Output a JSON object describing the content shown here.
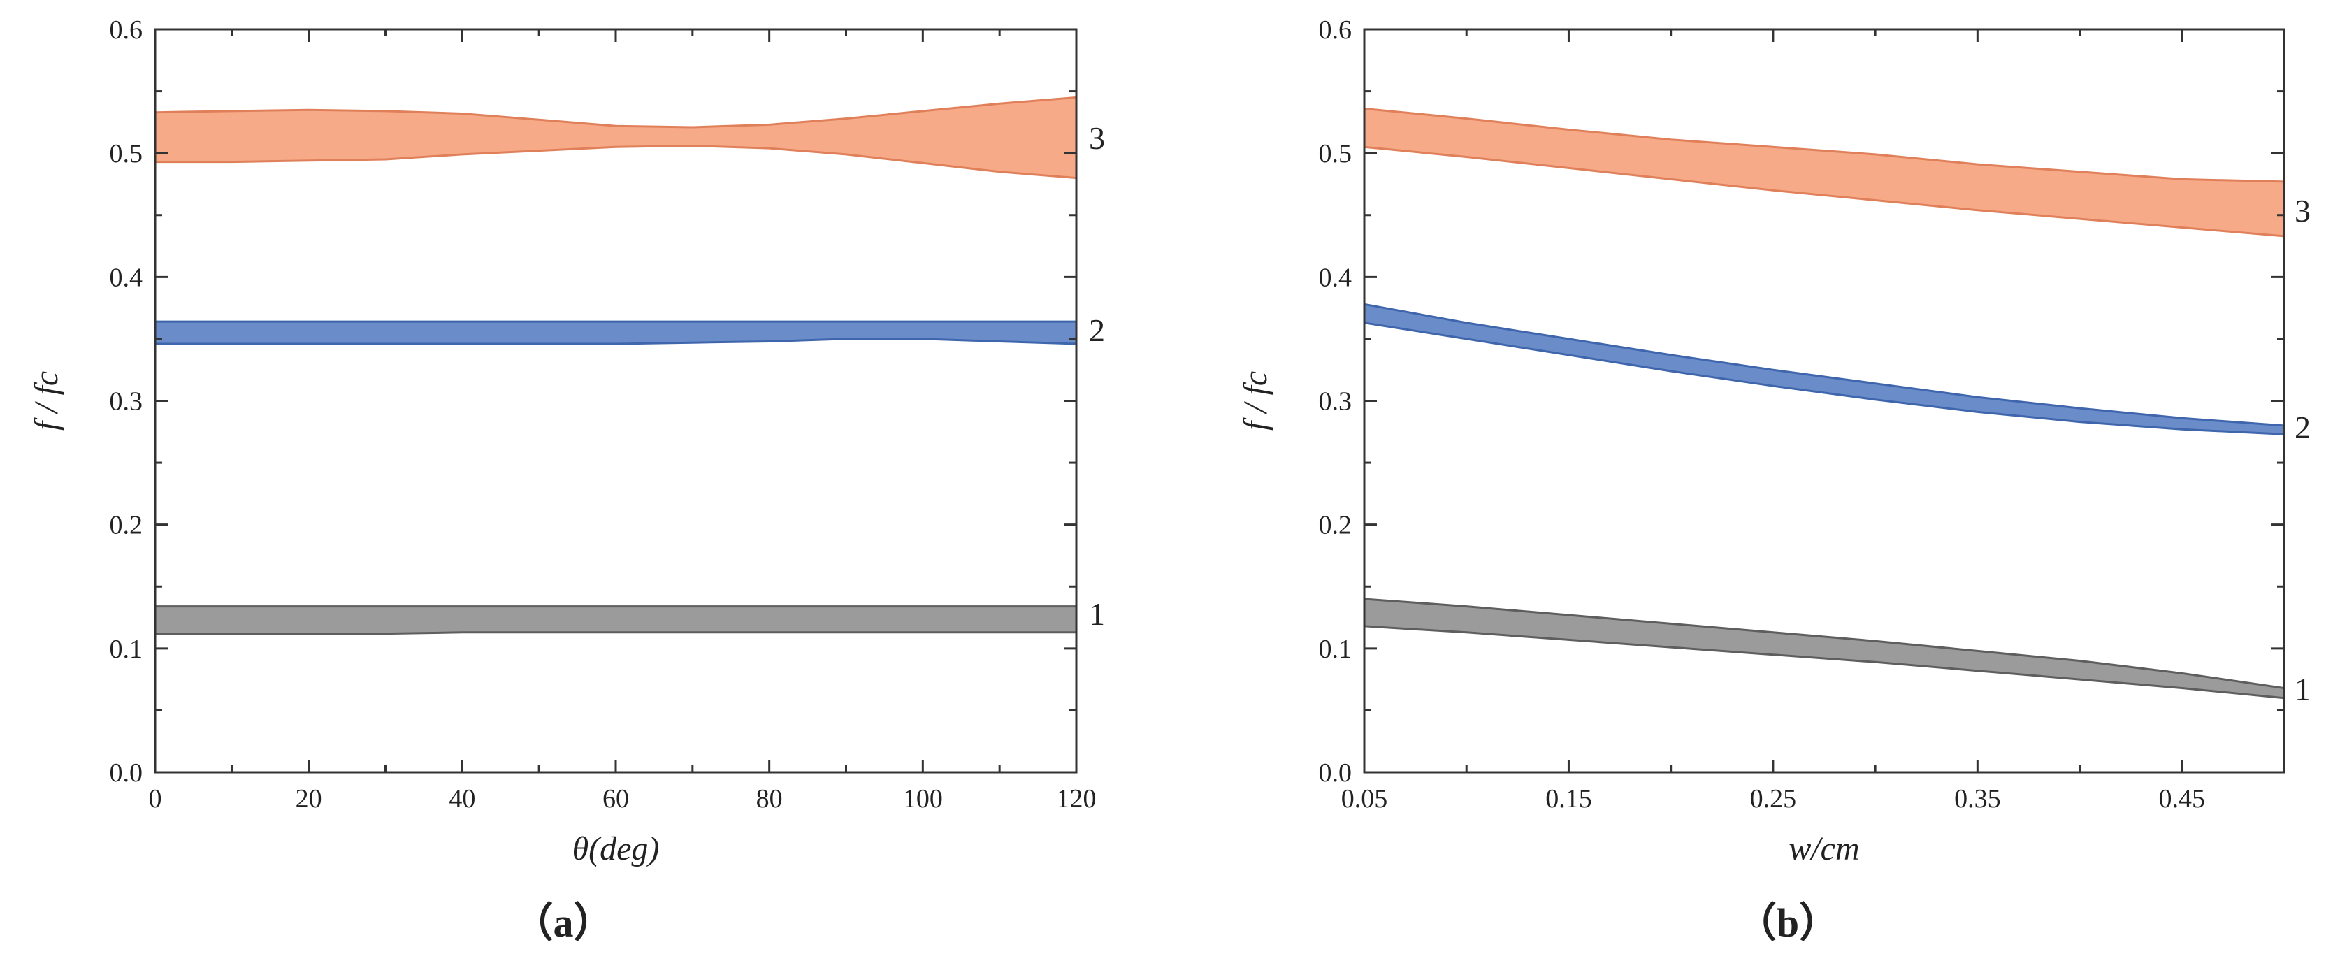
{
  "chart_data": [
    {
      "type": "area",
      "panel": "(a)",
      "caption": "（a）",
      "xlabel": "θ(deg)",
      "ylabel": "f / fc",
      "xlim": [
        0,
        120
      ],
      "ylim": [
        0.0,
        0.6
      ],
      "xticks": [
        0,
        20,
        40,
        60,
        80,
        100,
        120
      ],
      "xtick_labels": [
        "0",
        "20",
        "40",
        "60",
        "80",
        "100",
        "120"
      ],
      "yticks": [
        0.0,
        0.1,
        0.2,
        0.3,
        0.4,
        0.5,
        0.6
      ],
      "ytick_labels": [
        "0.0",
        "0.1",
        "0.2",
        "0.3",
        "0.4",
        "0.5",
        "0.6"
      ],
      "x": [
        0,
        10,
        20,
        30,
        40,
        50,
        60,
        70,
        80,
        90,
        100,
        110,
        120
      ],
      "series": [
        {
          "name": "1",
          "label": "1",
          "color": "#9b9b9b",
          "edge": "#5e5e5e",
          "lower": [
            0.112,
            0.112,
            0.112,
            0.112,
            0.113,
            0.113,
            0.113,
            0.113,
            0.113,
            0.113,
            0.113,
            0.113,
            0.113
          ],
          "upper": [
            0.134,
            0.134,
            0.134,
            0.134,
            0.134,
            0.134,
            0.134,
            0.134,
            0.134,
            0.134,
            0.134,
            0.134,
            0.134
          ]
        },
        {
          "name": "2",
          "label": "2",
          "color": "#6a8cc9",
          "edge": "#3f66ad",
          "lower": [
            0.346,
            0.346,
            0.346,
            0.346,
            0.346,
            0.346,
            0.346,
            0.347,
            0.348,
            0.35,
            0.35,
            0.348,
            0.346
          ],
          "upper": [
            0.364,
            0.364,
            0.364,
            0.364,
            0.364,
            0.364,
            0.364,
            0.364,
            0.364,
            0.364,
            0.364,
            0.364,
            0.364
          ]
        },
        {
          "name": "3",
          "label": "3",
          "color": "#f7aa88",
          "edge": "#e0805a",
          "lower": [
            0.493,
            0.493,
            0.494,
            0.495,
            0.499,
            0.502,
            0.505,
            0.506,
            0.504,
            0.499,
            0.492,
            0.485,
            0.48
          ],
          "upper": [
            0.533,
            0.534,
            0.535,
            0.534,
            0.532,
            0.527,
            0.522,
            0.521,
            0.523,
            0.528,
            0.534,
            0.54,
            0.545
          ]
        }
      ]
    },
    {
      "type": "area",
      "panel": "(b)",
      "caption": "（b）",
      "xlabel": "w/cm",
      "ylabel": "f / fc",
      "xlim": [
        0.05,
        0.5
      ],
      "ylim": [
        0.0,
        0.6
      ],
      "xticks": [
        0.05,
        0.15,
        0.25,
        0.35,
        0.45
      ],
      "xtick_labels": [
        "0.05",
        "0.15",
        "0.25",
        "0.35",
        "0.45"
      ],
      "yticks": [
        0.0,
        0.1,
        0.2,
        0.3,
        0.4,
        0.5,
        0.6
      ],
      "ytick_labels": [
        "0.0",
        "0.1",
        "0.2",
        "0.3",
        "0.4",
        "0.5",
        "0.6"
      ],
      "x": [
        0.05,
        0.1,
        0.15,
        0.2,
        0.25,
        0.3,
        0.35,
        0.4,
        0.45,
        0.5
      ],
      "series": [
        {
          "name": "1",
          "label": "1",
          "color": "#9b9b9b",
          "edge": "#5e5e5e",
          "lower": [
            0.118,
            0.113,
            0.107,
            0.101,
            0.095,
            0.089,
            0.082,
            0.075,
            0.068,
            0.06
          ],
          "upper": [
            0.14,
            0.134,
            0.127,
            0.12,
            0.113,
            0.106,
            0.098,
            0.09,
            0.08,
            0.068
          ]
        },
        {
          "name": "2",
          "label": "2",
          "color": "#6a8cc9",
          "edge": "#3f66ad",
          "lower": [
            0.363,
            0.35,
            0.337,
            0.324,
            0.312,
            0.301,
            0.291,
            0.283,
            0.277,
            0.273
          ],
          "upper": [
            0.378,
            0.363,
            0.35,
            0.337,
            0.325,
            0.314,
            0.303,
            0.294,
            0.286,
            0.28
          ]
        },
        {
          "name": "3",
          "label": "3",
          "color": "#f7aa88",
          "edge": "#e0805a",
          "lower": [
            0.505,
            0.497,
            0.488,
            0.479,
            0.47,
            0.462,
            0.454,
            0.447,
            0.44,
            0.433
          ],
          "upper": [
            0.536,
            0.528,
            0.519,
            0.511,
            0.505,
            0.499,
            0.491,
            0.485,
            0.479,
            0.477
          ]
        }
      ]
    }
  ]
}
